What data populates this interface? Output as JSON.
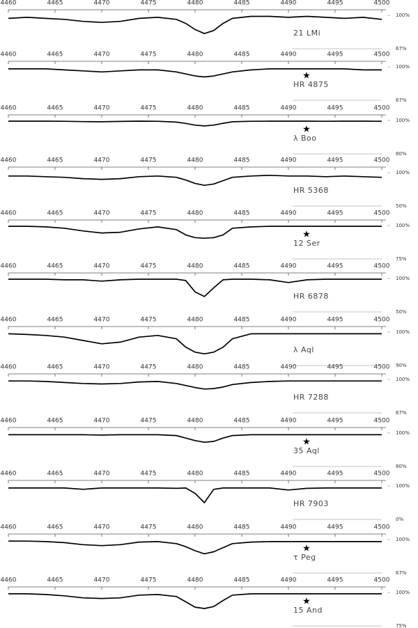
{
  "chart_data": [
    {
      "type": "line",
      "xlim": [
        4460,
        4500
      ],
      "xticks": [
        4460,
        4465,
        4470,
        4475,
        4480,
        4485,
        4490,
        4495,
        4500
      ],
      "ylim": [
        67,
        105.5
      ],
      "yticks": [
        {
          "value": 100,
          "label": "100%"
        },
        {
          "value": 67,
          "label": "67%"
        }
      ],
      "x": [
        4460,
        4462,
        4464,
        4466,
        4468,
        4470,
        4472,
        4474,
        4476,
        4478,
        4479,
        4480,
        4481,
        4482,
        4483,
        4484,
        4486,
        4488,
        4490,
        4492,
        4494,
        4496,
        4498,
        4500
      ],
      "series": [
        {
          "name": "21 LMi",
          "color": "#000000",
          "values": [
            97,
            98,
            97,
            96,
            94,
            93,
            94,
            97,
            98,
            96,
            92,
            86,
            82,
            85,
            92,
            97,
            99,
            99,
            98,
            99,
            98,
            97,
            98,
            96
          ]
        }
      ]
    },
    {
      "type": "line",
      "xlim": [
        4460,
        4500
      ],
      "xticks": [
        4460,
        4465,
        4470,
        4475,
        4480,
        4485,
        4490,
        4495,
        4500
      ],
      "ylim": [
        67,
        105.5
      ],
      "yticks": [
        {
          "value": 100,
          "label": "100%"
        },
        {
          "value": 67,
          "label": "67%"
        }
      ],
      "symbol": "★",
      "x": [
        4460,
        4462,
        4464,
        4466,
        4468,
        4470,
        4472,
        4474,
        4476,
        4478,
        4479,
        4480,
        4481,
        4482,
        4483,
        4484,
        4486,
        4488,
        4490,
        4492,
        4494,
        4496,
        4498,
        4500
      ],
      "series": [
        {
          "name": "HR 4875",
          "color": "#000000",
          "values": [
            98,
            98,
            98,
            97,
            96,
            95,
            96,
            97,
            97,
            95,
            93,
            91,
            90,
            91,
            93,
            95,
            97,
            98,
            98,
            98,
            98,
            98,
            97,
            97
          ]
        }
      ]
    },
    {
      "type": "line",
      "xlim": [
        4460,
        4500
      ],
      "xticks": [
        4460,
        4465,
        4470,
        4475,
        4480,
        4485,
        4490,
        4495,
        4500
      ],
      "ylim": [
        80,
        103.33
      ],
      "yticks": [
        {
          "value": 100,
          "label": "100%"
        },
        {
          "value": 80,
          "label": "80%"
        }
      ],
      "symbol": "★",
      "x": [
        4460,
        4462,
        4464,
        4466,
        4468,
        4470,
        4472,
        4474,
        4476,
        4478,
        4479,
        4480,
        4481,
        4482,
        4483,
        4484,
        4486,
        4488,
        4490,
        4492,
        4494,
        4496,
        4498,
        4500
      ],
      "series": [
        {
          "name": "λ Boo",
          "color": "#000000",
          "values": [
            99.6,
            99.6,
            99.6,
            99.5,
            99.3,
            99.2,
            99.4,
            99.6,
            99.5,
            99,
            98.2,
            97.2,
            96.7,
            97.2,
            98.3,
            99.2,
            99.5,
            99.6,
            99.6,
            99.6,
            99.5,
            99.6,
            99.6,
            99.5
          ]
        }
      ]
    },
    {
      "type": "line",
      "xlim": [
        4460,
        4500
      ],
      "xticks": [
        4460,
        4465,
        4470,
        4475,
        4480,
        4485,
        4490,
        4495,
        4500
      ],
      "ylim": [
        50,
        108.33
      ],
      "yticks": [
        {
          "value": 100,
          "label": "100%"
        },
        {
          "value": 50,
          "label": "50%"
        }
      ],
      "x": [
        4460,
        4462,
        4464,
        4466,
        4468,
        4470,
        4472,
        4474,
        4476,
        4478,
        4479,
        4480,
        4481,
        4482,
        4483,
        4484,
        4486,
        4488,
        4490,
        4492,
        4494,
        4496,
        4498,
        4500
      ],
      "series": [
        {
          "name": "HR 5368",
          "color": "#000000",
          "values": [
            95,
            95,
            94,
            93,
            91,
            90,
            91,
            94,
            95,
            93,
            89,
            84,
            81,
            83,
            88,
            93,
            95,
            96,
            95,
            95,
            94,
            95,
            94,
            93
          ]
        }
      ]
    },
    {
      "type": "line",
      "xlim": [
        4460,
        4500
      ],
      "xticks": [
        4460,
        4465,
        4470,
        4475,
        4480,
        4485,
        4490,
        4495,
        4500
      ],
      "ylim": [
        75,
        104.17
      ],
      "yticks": [
        {
          "value": 100,
          "label": "100%"
        },
        {
          "value": 75,
          "label": "75%"
        }
      ],
      "symbol": "★",
      "x": [
        4460,
        4462,
        4464,
        4466,
        4468,
        4470,
        4472,
        4474,
        4476,
        4478,
        4479,
        4480,
        4481,
        4482,
        4483,
        4484,
        4486,
        4488,
        4490,
        4492,
        4494,
        4496,
        4498,
        4500
      ],
      "series": [
        {
          "name": "12 Ser",
          "color": "#000000",
          "values": [
            99.5,
            99.5,
            99,
            98,
            96,
            94.5,
            95,
            97.5,
            99,
            97,
            93,
            91,
            90.5,
            91,
            93,
            98,
            99,
            99.5,
            99.5,
            99.5,
            99.5,
            99.5,
            99.5,
            99.5
          ]
        }
      ]
    },
    {
      "type": "line",
      "xlim": [
        4460,
        4500
      ],
      "xticks": [
        4460,
        4465,
        4470,
        4475,
        4480,
        4485,
        4490,
        4495,
        4500
      ],
      "ylim": [
        50,
        108.33
      ],
      "yticks": [
        {
          "value": 100,
          "label": "100%"
        },
        {
          "value": 50,
          "label": "50%"
        }
      ],
      "x": [
        4460,
        4462,
        4464,
        4466,
        4468,
        4470,
        4472,
        4474,
        4476,
        4478,
        4479,
        4480,
        4481,
        4482,
        4483,
        4484,
        4486,
        4488,
        4490,
        4492,
        4494,
        4496,
        4498,
        4500
      ],
      "series": [
        {
          "name": "HR 6878",
          "color": "#000000",
          "values": [
            99,
            99,
            99,
            98,
            98,
            96,
            98,
            99,
            99,
            99,
            97,
            80,
            73,
            86,
            98,
            99,
            99,
            98,
            94,
            98,
            99,
            99,
            99,
            99
          ]
        }
      ]
    },
    {
      "type": "line",
      "xlim": [
        4460,
        4500
      ],
      "xticks": [
        4460,
        4465,
        4470,
        4475,
        4480,
        4485,
        4490,
        4495,
        4500
      ],
      "ylim": [
        90,
        101.67
      ],
      "yticks": [
        {
          "value": 100,
          "label": "100%"
        },
        {
          "value": 90,
          "label": "90%"
        }
      ],
      "x": [
        4460,
        4462,
        4464,
        4466,
        4468,
        4470,
        4472,
        4474,
        4476,
        4478,
        4479,
        4480,
        4481,
        4482,
        4483,
        4484,
        4486,
        4488,
        4490,
        4492,
        4494,
        4496,
        4498,
        4500
      ],
      "series": [
        {
          "name": "λ Aql",
          "color": "#000000",
          "values": [
            99.5,
            99.3,
            99,
            98.5,
            97.5,
            96.5,
            97,
            98.5,
            99,
            98,
            95.5,
            94,
            93.5,
            94,
            95.5,
            98,
            99.5,
            99.5,
            99.5,
            99.5,
            99.5,
            99.5,
            99.5,
            99.5
          ]
        }
      ]
    },
    {
      "type": "line",
      "xlim": [
        4460,
        4500
      ],
      "xticks": [
        4460,
        4465,
        4470,
        4475,
        4480,
        4485,
        4490,
        4495,
        4500
      ],
      "ylim": [
        67,
        105.5
      ],
      "yticks": [
        {
          "value": 100,
          "label": "100%"
        },
        {
          "value": 67,
          "label": "67%"
        }
      ],
      "x": [
        4460,
        4462,
        4464,
        4466,
        4468,
        4470,
        4472,
        4474,
        4476,
        4478,
        4479,
        4480,
        4481,
        4482,
        4483,
        4484,
        4486,
        4488,
        4490,
        4492,
        4494,
        4496,
        4498,
        4500
      ],
      "series": [
        {
          "name": "HR 7288",
          "color": "#000000",
          "values": [
            98.5,
            98.5,
            98,
            97,
            96,
            95.5,
            96,
            97.5,
            98,
            96,
            94,
            92,
            90.5,
            91,
            92.5,
            95,
            97,
            98,
            98.5,
            98.5,
            98.5,
            98.5,
            98.5,
            98.5
          ]
        }
      ]
    },
    {
      "type": "line",
      "xlim": [
        4460,
        4500
      ],
      "xticks": [
        4460,
        4465,
        4470,
        4475,
        4480,
        4485,
        4490,
        4495,
        4500
      ],
      "ylim": [
        80,
        103.33
      ],
      "yticks": [
        {
          "value": 100,
          "label": "100%"
        },
        {
          "value": 80,
          "label": "80%"
        }
      ],
      "symbol": "★",
      "x": [
        4460,
        4462,
        4464,
        4466,
        4468,
        4470,
        4472,
        4474,
        4476,
        4478,
        4479,
        4480,
        4481,
        4482,
        4483,
        4484,
        4486,
        4488,
        4490,
        4492,
        4494,
        4496,
        4498,
        4500
      ],
      "series": [
        {
          "name": "35 Aql",
          "color": "#000000",
          "values": [
            99,
            99,
            99,
            99,
            99,
            98.8,
            99,
            99,
            99,
            98.5,
            97,
            95.5,
            94.5,
            95,
            97,
            98.5,
            99,
            99,
            99,
            99,
            99,
            99,
            99,
            99
          ]
        }
      ]
    },
    {
      "type": "line",
      "xlim": [
        4460,
        4500
      ],
      "xticks": [
        4460,
        4465,
        4470,
        4475,
        4480,
        4485,
        4490,
        4495,
        4500
      ],
      "ylim": [
        0,
        116.67
      ],
      "yticks": [
        {
          "value": 100,
          "label": "100%"
        },
        {
          "value": 0,
          "label": "0%"
        }
      ],
      "x": [
        4460,
        4462,
        4464,
        4466,
        4468,
        4470,
        4472,
        4474,
        4476,
        4478,
        4479,
        4480,
        4481,
        4482,
        4483,
        4484,
        4486,
        4488,
        4490,
        4492,
        4494,
        4496,
        4498,
        4500
      ],
      "series": [
        {
          "name": "HR 7903",
          "color": "#000000",
          "values": [
            94,
            94,
            94,
            94,
            90,
            94,
            94,
            94,
            94,
            93,
            94,
            78,
            50,
            90,
            94,
            94,
            94,
            94,
            88,
            93,
            94,
            94,
            94,
            94
          ]
        }
      ]
    },
    {
      "type": "line",
      "xlim": [
        4460,
        4500
      ],
      "xticks": [
        4460,
        4465,
        4470,
        4475,
        4480,
        4485,
        4490,
        4495,
        4500
      ],
      "ylim": [
        67,
        105.5
      ],
      "yticks": [
        {
          "value": 100,
          "label": "100%"
        },
        {
          "value": 67,
          "label": "67%"
        }
      ],
      "symbol": "★",
      "x": [
        4460,
        4462,
        4464,
        4466,
        4468,
        4470,
        4472,
        4474,
        4476,
        4478,
        4479,
        4480,
        4481,
        4482,
        4483,
        4484,
        4486,
        4488,
        4490,
        4492,
        4494,
        4496,
        4498,
        4500
      ],
      "series": [
        {
          "name": "τ Peg",
          "color": "#000000",
          "values": [
            98.5,
            98.5,
            98,
            97,
            95,
            94,
            95,
            97.5,
            98,
            96,
            93,
            89,
            86,
            88,
            92,
            96,
            97.5,
            98,
            98,
            98,
            98,
            98,
            98,
            98
          ]
        }
      ]
    },
    {
      "type": "line",
      "xlim": [
        4460,
        4500
      ],
      "xticks": [
        4460,
        4465,
        4470,
        4475,
        4480,
        4485,
        4490,
        4495,
        4500
      ],
      "ylim": [
        75,
        104.17
      ],
      "yticks": [
        {
          "value": 100,
          "label": "100%"
        },
        {
          "value": 75,
          "label": "75%"
        }
      ],
      "symbol": "★",
      "x": [
        4460,
        4462,
        4464,
        4466,
        4468,
        4470,
        4472,
        4474,
        4476,
        4478,
        4479,
        4480,
        4481,
        4482,
        4483,
        4484,
        4486,
        4488,
        4490,
        4492,
        4494,
        4496,
        4498,
        4500
      ],
      "series": [
        {
          "name": "15 And",
          "color": "#000000",
          "values": [
            99,
            99,
            98.5,
            97.5,
            96,
            95.5,
            96,
            98,
            98.5,
            97,
            93,
            89,
            88,
            89.5,
            94,
            98,
            99,
            99,
            99,
            99,
            99,
            99,
            99,
            99
          ]
        }
      ]
    }
  ]
}
